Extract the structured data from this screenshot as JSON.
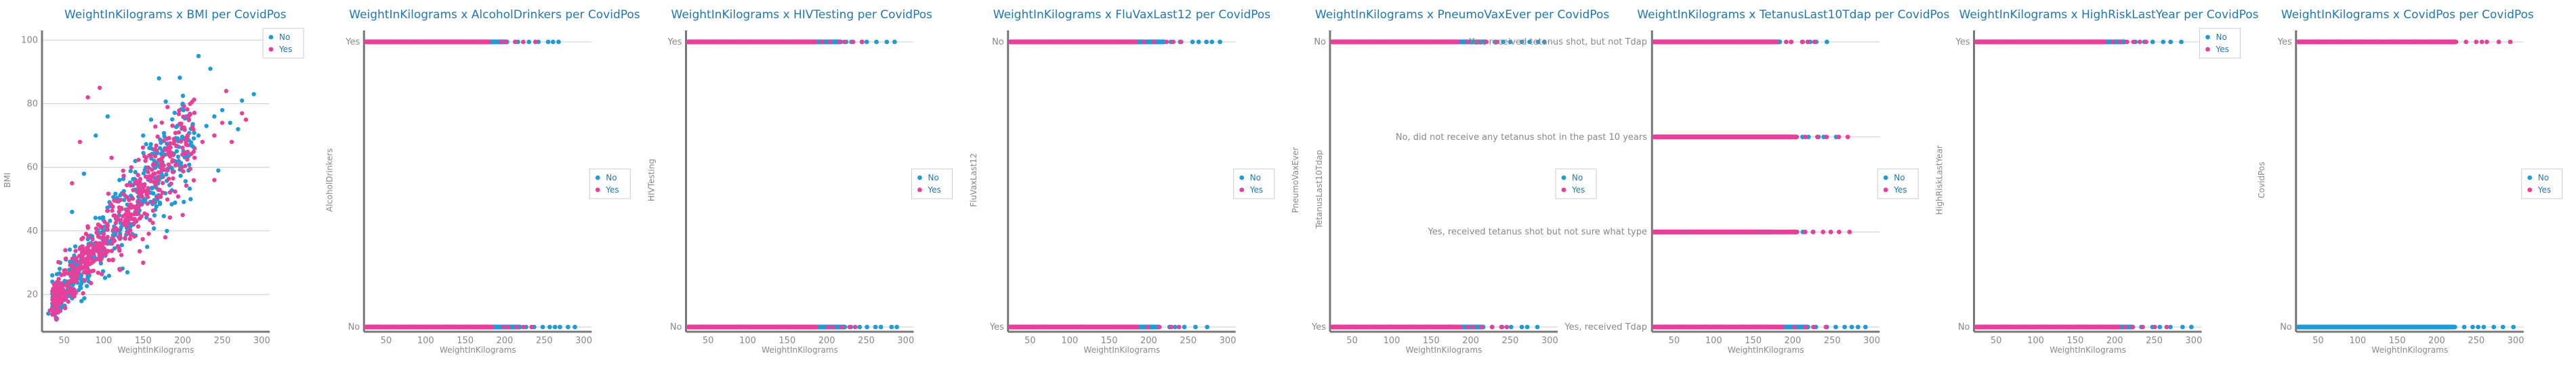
{
  "colors": {
    "No": "#1f9bd6",
    "Yes": "#e8409a",
    "title": "#1f77b4",
    "tick": "#888888",
    "grid": "#cccccc",
    "axis": "#777777"
  },
  "chart_data": [
    {
      "type": "scatter",
      "title": "WeightInKilograms x BMI per CovidPos",
      "xlabel": "WeightInKilograms",
      "ylabel": "BMI",
      "xlim": [
        22,
        310
      ],
      "ylim": [
        10,
        102
      ],
      "x_ticks": [
        50,
        100,
        150,
        200,
        250,
        300
      ],
      "y_ticks": [
        20,
        40,
        60,
        80,
        100
      ],
      "y_tick_labels": [
        "20",
        "40",
        "60",
        "80",
        "100"
      ],
      "legend": [
        "No",
        "Yes"
      ],
      "legend_position": "top-right",
      "grid": "horizontal",
      "series": [
        {
          "name": "No",
          "points": [
            [
              30,
              14
            ],
            [
              40,
              17
            ],
            [
              50,
              19
            ],
            [
              60,
              22
            ],
            [
              70,
              25
            ],
            [
              80,
              28
            ],
            [
              90,
              31
            ],
            [
              100,
              34
            ],
            [
              110,
              37
            ],
            [
              120,
              40
            ],
            [
              130,
              43
            ],
            [
              140,
              46
            ],
            [
              150,
              49
            ],
            [
              160,
              52
            ],
            [
              170,
              56
            ],
            [
              180,
              59
            ],
            [
              190,
              62
            ],
            [
              200,
              64
            ],
            [
              210,
              67
            ],
            [
              220,
              70
            ],
            [
              230,
              73
            ],
            [
              240,
              76
            ],
            [
              250,
              78
            ],
            [
              260,
              74
            ],
            [
              275,
              81
            ],
            [
              290,
              83
            ],
            [
              45,
              30
            ],
            [
              60,
              46
            ],
            [
              75,
              58
            ],
            [
              90,
              70
            ],
            [
              105,
              76
            ],
            [
              120,
              56
            ],
            [
              150,
              70
            ],
            [
              170,
              88
            ],
            [
              200,
              80
            ],
            [
              220,
              95
            ],
            [
              235,
              91
            ],
            [
              245,
              59
            ],
            [
              270,
              72
            ],
            [
              130,
              27
            ],
            [
              155,
              35
            ],
            [
              180,
              40
            ],
            [
              210,
              50
            ],
            [
              140,
              62
            ],
            [
              160,
              75
            ]
          ]
        },
        {
          "name": "Yes",
          "points": [
            [
              32,
              15
            ],
            [
              45,
              18
            ],
            [
              55,
              21
            ],
            [
              65,
              24
            ],
            [
              75,
              27
            ],
            [
              85,
              30
            ],
            [
              95,
              33
            ],
            [
              105,
              36
            ],
            [
              115,
              39
            ],
            [
              125,
              42
            ],
            [
              135,
              45
            ],
            [
              145,
              48
            ],
            [
              155,
              51
            ],
            [
              165,
              54
            ],
            [
              175,
              57
            ],
            [
              185,
              60
            ],
            [
              195,
              62
            ],
            [
              205,
              64
            ],
            [
              215,
              66
            ],
            [
              225,
              68
            ],
            [
              240,
              70
            ],
            [
              250,
              74
            ],
            [
              262,
              68
            ],
            [
              275,
              77
            ],
            [
              60,
              55
            ],
            [
              70,
              68
            ],
            [
              80,
              82
            ],
            [
              95,
              85
            ],
            [
              110,
              63
            ],
            [
              135,
              60
            ],
            [
              160,
              66
            ],
            [
              195,
              71
            ],
            [
              215,
              63
            ],
            [
              240,
              56
            ],
            [
              255,
              84
            ],
            [
              280,
              75
            ],
            [
              150,
              30
            ],
            [
              178,
              38
            ],
            [
              200,
              45
            ],
            [
              120,
              28
            ]
          ]
        }
      ]
    },
    {
      "type": "scatter",
      "title": "WeightInKilograms x AlcoholDrinkers per CovidPos",
      "xlabel": "WeightInKilograms",
      "ylabel": "AlcoholDrinkers",
      "xlim": [
        22,
        310
      ],
      "x_ticks": [
        50,
        100,
        150,
        200,
        250,
        300
      ],
      "y_categories": [
        "Yes",
        "No"
      ],
      "legend": [
        "No",
        "Yes"
      ],
      "legend_position": "center-right",
      "grid": "horizontal",
      "series": [
        {
          "name": "No",
          "ranges": {
            "Yes": [
              25,
              272
            ],
            "No": [
              25,
              295
            ]
          }
        },
        {
          "name": "Yes",
          "ranges": {
            "Yes": [
              25,
              240
            ],
            "No": [
              25,
              245
            ]
          }
        }
      ]
    },
    {
      "type": "scatter",
      "title": "WeightInKilograms x HIVTesting per CovidPos",
      "xlabel": "WeightInKilograms",
      "ylabel": "HIVTesting",
      "xlim": [
        22,
        310
      ],
      "x_ticks": [
        50,
        100,
        150,
        200,
        250,
        300
      ],
      "y_categories": [
        "Yes",
        "No"
      ],
      "legend": [
        "No",
        "Yes"
      ],
      "legend_position": "center-right",
      "grid": "horizontal",
      "series": [
        {
          "name": "No",
          "ranges": {
            "Yes": [
              25,
              293
            ],
            "No": [
              25,
              300
            ]
          }
        },
        {
          "name": "Yes",
          "ranges": {
            "Yes": [
              25,
              248
            ],
            "No": [
              25,
              250
            ]
          }
        }
      ]
    },
    {
      "type": "scatter",
      "title": "WeightInKilograms x FluVaxLast12 per CovidPos",
      "xlabel": "WeightInKilograms",
      "ylabel": "FluVaxLast12",
      "xlim": [
        22,
        310
      ],
      "x_ticks": [
        50,
        100,
        150,
        200,
        250,
        300
      ],
      "y_categories": [
        "No",
        "Yes"
      ],
      "legend": [
        "No",
        "Yes"
      ],
      "legend_position": "center-right",
      "grid": "horizontal",
      "series": [
        {
          "name": "No",
          "ranges": {
            "No": [
              25,
              295
            ],
            "Yes": [
              25,
              285
            ]
          }
        },
        {
          "name": "Yes",
          "ranges": {
            "No": [
              25,
              245
            ],
            "Yes": [
              25,
              248
            ]
          }
        }
      ]
    },
    {
      "type": "scatter",
      "title": "WeightInKilograms x PneumoVaxEver per CovidPos",
      "xlabel": "WeightInKilograms",
      "ylabel": "PneumoVaxEver",
      "ylabel2": "TetanusLast10Tdap",
      "xlim": [
        22,
        310
      ],
      "x_ticks": [
        50,
        100,
        150,
        200,
        250,
        300
      ],
      "y_categories": [
        "No",
        "Yes"
      ],
      "legend": [
        "No",
        "Yes"
      ],
      "legend_position": "center-right",
      "grid": "horizontal",
      "overlay_labels": [
        "Yes, received tetanus shot, but not Tdap",
        "No, did not receive any tetanus shot in the past 10 years",
        "Yes, received tetanus shot but not sure what type",
        "Yes, received Tdap"
      ],
      "series": [
        {
          "name": "No",
          "ranges": {
            "No": [
              25,
              295
            ],
            "Yes": [
              25,
              290
            ]
          }
        },
        {
          "name": "Yes",
          "ranges": {
            "No": [
              25,
              245
            ],
            "Yes": [
              25,
              250
            ]
          }
        }
      ]
    },
    {
      "type": "scatter",
      "title": "WeightInKilograms x TetanusLast10Tdap per CovidPos",
      "xlabel": "WeightInKilograms",
      "ylabel": "",
      "xlim": [
        22,
        310
      ],
      "x_ticks": [
        50,
        100,
        150,
        200,
        250,
        300
      ],
      "y_categories": [
        "c1",
        "c2",
        "c3",
        "c4"
      ],
      "legend": [
        "No",
        "Yes"
      ],
      "legend_position": "center-right",
      "grid": "horizontal",
      "series": [
        {
          "name": "No",
          "ranges": {
            "c1": [
              25,
              245
            ],
            "c2": [
              25,
              265
            ],
            "c3": [
              25,
              230
            ],
            "c4": [
              25,
              295
            ]
          }
        },
        {
          "name": "Yes",
          "ranges": {
            "c1": [
              25,
              240
            ],
            "c2": [
              25,
              275
            ],
            "c3": [
              25,
              275
            ],
            "c4": [
              25,
              250
            ]
          }
        }
      ]
    },
    {
      "type": "scatter",
      "title": "WeightInKilograms x HighRiskLastYear per CovidPos",
      "xlabel": "WeightInKilograms",
      "ylabel": "HighRiskLastYear",
      "xlim": [
        22,
        310
      ],
      "x_ticks": [
        50,
        100,
        150,
        200,
        250,
        300
      ],
      "y_categories": [
        "Yes",
        "No"
      ],
      "legend": [
        "No",
        "Yes"
      ],
      "legend_position": "top-right",
      "grid": "horizontal",
      "series": [
        {
          "name": "No",
          "ranges": {
            "Yes": [
              25,
              285
            ],
            "No": [
              25,
              300
            ]
          }
        },
        {
          "name": "Yes",
          "ranges": {
            "Yes": [
              25,
              250
            ],
            "No": [
              25,
              275
            ]
          }
        }
      ]
    },
    {
      "type": "scatter",
      "title": "WeightInKilograms x CovidPos per CovidPos",
      "xlabel": "WeightInKilograms",
      "ylabel": "CovidPos",
      "xlim": [
        22,
        310
      ],
      "x_ticks": [
        50,
        100,
        150,
        200,
        250,
        300
      ],
      "y_categories": [
        "Yes",
        "No"
      ],
      "legend": [
        "No",
        "Yes"
      ],
      "legend_position": "center-right",
      "grid": "horizontal",
      "series": [
        {
          "name": "No",
          "ranges": {
            "No": [
              25,
              300
            ]
          }
        },
        {
          "name": "Yes",
          "ranges": {
            "Yes": [
              25,
              302
            ]
          }
        }
      ]
    }
  ]
}
